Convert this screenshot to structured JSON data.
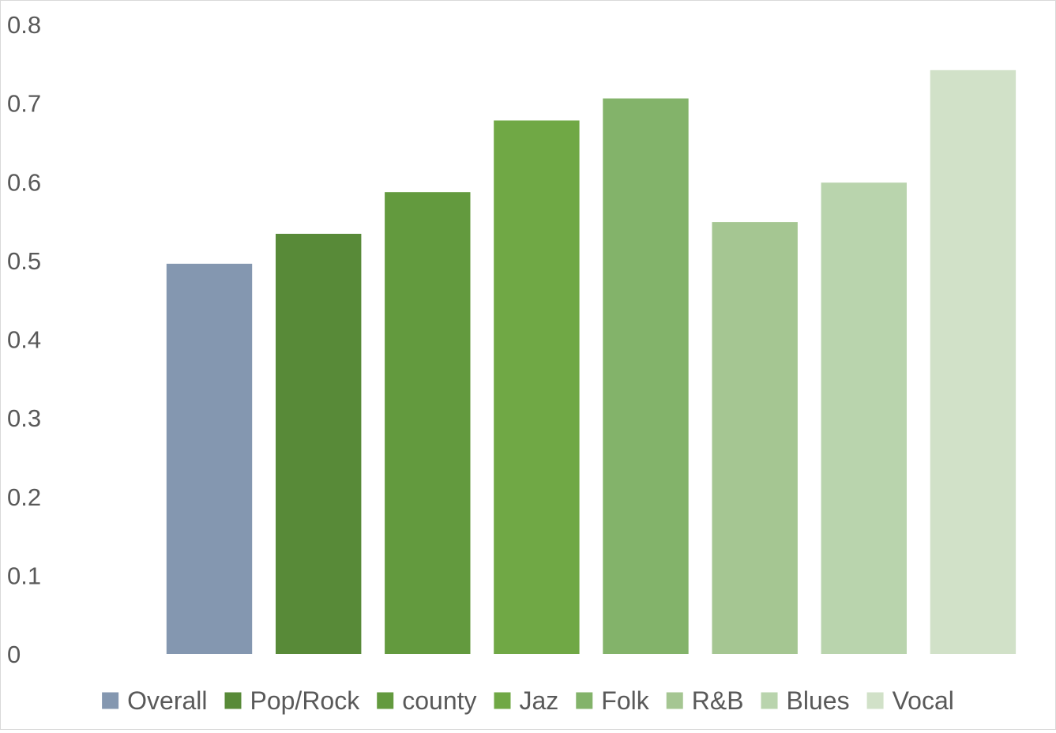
{
  "chart_data": {
    "type": "bar",
    "categories": [
      "Overall",
      "Pop/Rock",
      "county",
      "Jaz",
      "Folk",
      "R&B",
      "Blues",
      "Vocal"
    ],
    "values": [
      0.496,
      0.534,
      0.587,
      0.678,
      0.706,
      0.549,
      0.599,
      0.742
    ],
    "colors": [
      "#8497b0",
      "#588a38",
      "#639a3e",
      "#70a845",
      "#83b36a",
      "#a5c692",
      "#b9d4ad",
      "#d1e1c8"
    ],
    "title": "",
    "xlabel": "",
    "ylabel": "",
    "ylim": [
      0,
      0.8
    ],
    "yticks": [
      "0",
      "0.1",
      "0.2",
      "0.3",
      "0.4",
      "0.5",
      "0.6",
      "0.7",
      "0.8"
    ],
    "grid": false,
    "legend": {
      "position": "bottom",
      "entries": [
        "Overall",
        "Pop/Rock",
        "county",
        "Jaz",
        "Folk",
        "R&B",
        "Blues",
        "Vocal"
      ]
    }
  }
}
